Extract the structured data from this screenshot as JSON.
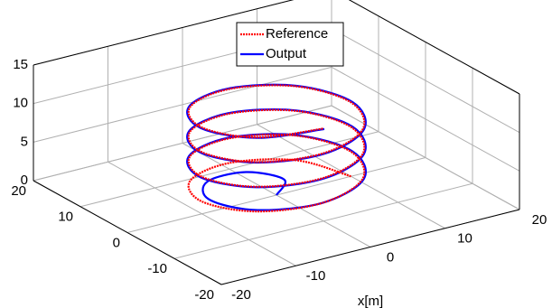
{
  "chart_data": {
    "type": "line3d",
    "xlabel": "x[m]",
    "xlim": [
      -20,
      20
    ],
    "ylim": [
      -20,
      20
    ],
    "zlim": [
      0,
      15
    ],
    "xticks": [
      -20,
      -10,
      0,
      10,
      20
    ],
    "yticks": [
      -20,
      -10,
      0,
      10,
      20
    ],
    "zticks": [
      0,
      5,
      10,
      15
    ],
    "grid": true,
    "legend": "north",
    "series": [
      {
        "name": "Reference",
        "color": "#ff0000",
        "dash": "2,1",
        "x": [
          10,
          7.1,
          0,
          -7.1,
          -10,
          -7.1,
          0,
          7.1,
          10,
          7.1,
          0,
          -7.1,
          -10,
          -7.1,
          0,
          7.1,
          10,
          7.1,
          0,
          -7.1,
          -10,
          -7.1,
          0,
          7.1,
          10,
          7.1,
          0,
          -7.1,
          -10,
          -7.1,
          0
        ],
        "y": [
          0,
          7.1,
          10,
          7.1,
          0,
          -7.1,
          -10,
          -7.1,
          0,
          7.1,
          10,
          7.1,
          0,
          -7.1,
          -10,
          -7.1,
          0,
          7.1,
          10,
          7.1,
          0,
          -7.1,
          -10,
          -7.1,
          0,
          7.1,
          10,
          7.1,
          0,
          -7.1,
          -10
        ],
        "z": [
          0,
          0.4,
          0.8,
          1.2,
          1.6,
          2,
          2.4,
          2.8,
          3.2,
          3.6,
          4,
          4.4,
          4.8,
          5.2,
          5.6,
          6,
          6.4,
          6.8,
          7.2,
          7.6,
          8,
          8.4,
          8.8,
          9.2,
          9.6,
          10,
          10.4,
          10.8,
          11.2,
          11.6,
          12
        ]
      },
      {
        "name": "Output",
        "color": "#0000ff",
        "dash": "none",
        "x": [
          0,
          2.8,
          0,
          -5.7,
          -9,
          -6.8,
          0,
          7.2,
          10.2,
          7.2,
          0,
          -7.2,
          -10.2,
          -7.2,
          0,
          7.2,
          10.2,
          7.2,
          0,
          -7.2,
          -10.2,
          -7.2,
          0,
          7.2,
          10.2,
          7.2,
          0,
          -7.2,
          -10.2,
          -7.2,
          0
        ],
        "y": [
          0,
          2.8,
          6.5,
          5.7,
          0,
          -6.8,
          -10,
          -7.2,
          0,
          7.2,
          10.2,
          7.2,
          0,
          -7.2,
          -10.2,
          -7.2,
          0,
          7.2,
          10.2,
          7.2,
          0,
          -7.2,
          -10.2,
          -7.2,
          0,
          7.2,
          10.2,
          7.2,
          0,
          -7.2,
          -10.2
        ],
        "z": [
          0,
          0.4,
          0.8,
          1.2,
          1.6,
          2,
          2.4,
          2.8,
          3.2,
          3.6,
          4,
          4.4,
          4.8,
          5.2,
          5.6,
          6,
          6.4,
          6.8,
          7.2,
          7.6,
          8,
          8.4,
          8.8,
          9.2,
          9.6,
          10,
          10.4,
          10.8,
          11.2,
          11.6,
          12
        ]
      }
    ]
  }
}
